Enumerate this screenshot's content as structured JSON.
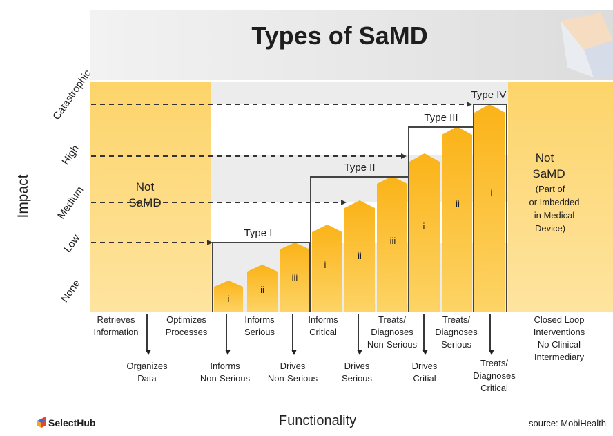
{
  "title": "Types of SaMD",
  "y_axis_label": "Impact",
  "x_axis_label": "Functionality",
  "impact_levels": [
    "None",
    "Low",
    "Medium",
    "High",
    "Catastrophic"
  ],
  "not_samd_left": [
    "Not",
    "SaMD"
  ],
  "not_samd_right": [
    "Not",
    "SaMD",
    "(Part of",
    "or Imbedded",
    "in Medical",
    "Device)"
  ],
  "type_labels": [
    "Type I",
    "Type II",
    "Type III",
    "Type IV"
  ],
  "bar_numerals": [
    "i",
    "ii",
    "iii",
    "i",
    "ii",
    "iii",
    "i",
    "ii",
    "i"
  ],
  "functionality_upper": [
    [
      "Retrieves",
      "Information"
    ],
    [
      "Optimizes",
      "Processes"
    ],
    [
      "Informs",
      "Serious"
    ],
    [
      "Informs",
      "Critical"
    ],
    [
      "Treats/",
      "Diagnoses",
      "Non-Serious"
    ],
    [
      "Treats/",
      "Diagnoses",
      "Serious"
    ],
    [
      "Closed Loop",
      "Interventions",
      "No Clinical",
      "Intermediary"
    ]
  ],
  "functionality_lower": [
    [
      "Organizes",
      "Data"
    ],
    [
      "Informs",
      "Non-Serious"
    ],
    [
      "Drives",
      "Non-Serious"
    ],
    [
      "Drives",
      "Serious"
    ],
    [
      "Drives",
      "Critial"
    ],
    [
      "Treats/",
      "Diagnoses",
      "Critical"
    ]
  ],
  "brand": "SelectHub",
  "source": "source: MobiHealth",
  "colors": {
    "bar_gold": "#fbb318",
    "bar_light": "#fdd05a",
    "not_samd": "#fdd874",
    "band_gray": "#e6e6e6",
    "header_gray": "#e4e4e4",
    "line_dark": "#444444",
    "text_dark": "#2b2b2b"
  }
}
